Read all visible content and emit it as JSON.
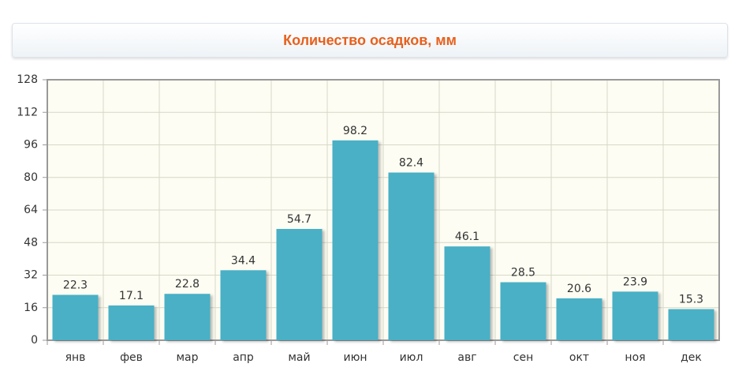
{
  "chart_data": {
    "type": "bar",
    "title": "Количество осадков, мм",
    "categories": [
      "янв",
      "фев",
      "мар",
      "апр",
      "май",
      "июн",
      "июл",
      "авг",
      "сен",
      "окт",
      "ноя",
      "дек"
    ],
    "values": [
      22.3,
      17.1,
      22.8,
      34.4,
      54.7,
      98.2,
      82.4,
      46.1,
      28.5,
      20.6,
      23.9,
      15.3
    ],
    "color": "#4ab0c6",
    "ylim": [
      0,
      128
    ],
    "yticks": [
      0,
      16,
      32,
      48,
      64,
      80,
      96,
      112,
      128
    ],
    "grid": true
  }
}
